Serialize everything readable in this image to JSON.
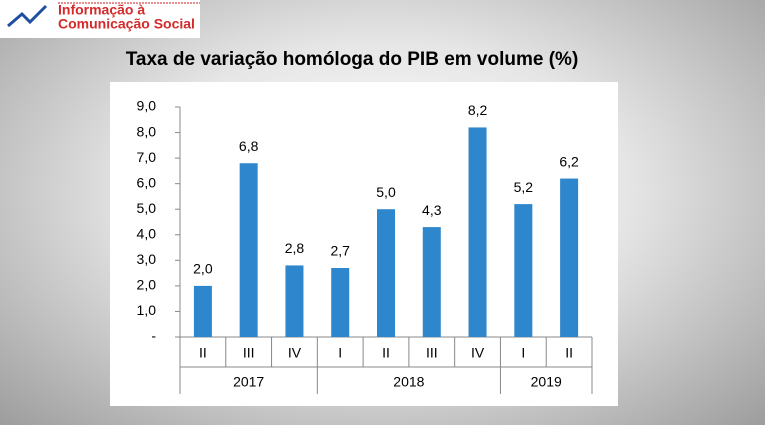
{
  "header": {
    "logo_line1": "Informação à",
    "logo_line2": "Comunicação Social"
  },
  "chart_data": {
    "type": "bar",
    "title": "Taxa de variação homóloga do PIB em volume (%)",
    "groups": [
      {
        "name": "2017",
        "categories": [
          "II",
          "III",
          "IV"
        ]
      },
      {
        "name": "2018",
        "categories": [
          "I",
          "II",
          "III",
          "IV"
        ]
      },
      {
        "name": "2019",
        "categories": [
          "I",
          "II"
        ]
      }
    ],
    "values": [
      2.0,
      6.8,
      2.8,
      2.7,
      5.0,
      4.3,
      8.2,
      5.2,
      6.2
    ],
    "value_labels": [
      "2,0",
      "6,8",
      "2,8",
      "2,7",
      "5,0",
      "4,3",
      "8,2",
      "5,2",
      "6,2"
    ],
    "color": "#2e86cc",
    "ylim": [
      0,
      9
    ],
    "yticks": [
      {
        "value": 0,
        "label": "-"
      },
      {
        "value": 1,
        "label": "1,0"
      },
      {
        "value": 2,
        "label": "2,0"
      },
      {
        "value": 3,
        "label": "3,0"
      },
      {
        "value": 4,
        "label": "4,0"
      },
      {
        "value": 5,
        "label": "5,0"
      },
      {
        "value": 6,
        "label": "6,0"
      },
      {
        "value": 7,
        "label": "7,0"
      },
      {
        "value": 8,
        "label": "8,0"
      },
      {
        "value": 9,
        "label": "9,0"
      }
    ],
    "grid": false
  }
}
